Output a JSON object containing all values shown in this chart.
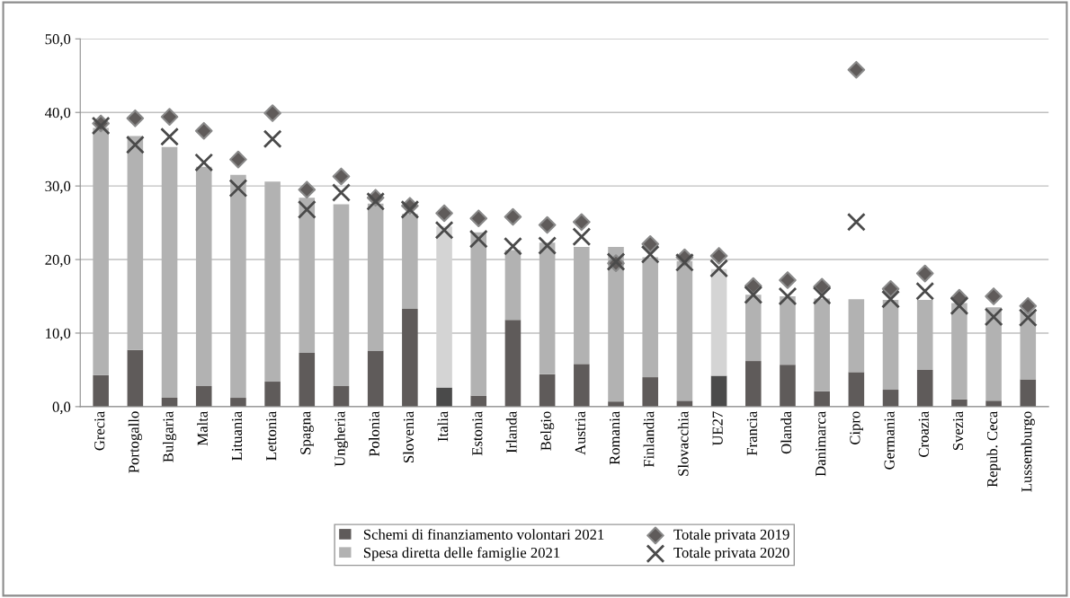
{
  "chart_data": {
    "type": "bar",
    "stacked": true,
    "grid": "y",
    "legend": "bottom",
    "categories": [
      "Grecia",
      "Portogallo",
      "Bulgaria",
      "Malta",
      "Lituania",
      "Lettonia",
      "Spagna",
      "Ungheria",
      "Polonia",
      "Slovenia",
      "Italia",
      "Estonia",
      "Irlanda",
      "Belgio",
      "Austria",
      "Romania",
      "Finlandia",
      "Slovacchia",
      "UE27",
      "Francia",
      "Olanda",
      "Danimarca",
      "Cipro",
      "Germania",
      "Croazia",
      "Svezia",
      "Repub. Ceca",
      "Lussemburgo"
    ],
    "ylim": [
      0,
      50
    ],
    "yticks": [
      {
        "value": 0,
        "label": "0,0"
      },
      {
        "value": 10,
        "label": "10,0"
      },
      {
        "value": 20,
        "label": "20,0"
      },
      {
        "value": 30,
        "label": "30,0"
      },
      {
        "value": 40,
        "label": "40,0"
      },
      {
        "value": 50,
        "label": "50,0"
      }
    ],
    "series": [
      {
        "name": "Schemi di finanziamento volontari 2021",
        "color": "#5f5b5a",
        "colors": [
          "#5f5b5a",
          "#5f5b5a",
          "#5f5b5a",
          "#5f5b5a",
          "#5f5b5a",
          "#5f5b5a",
          "#5f5b5a",
          "#5f5b5a",
          "#5f5b5a",
          "#5f5b5a",
          "#4a4a4a",
          "#5f5b5a",
          "#5f5b5a",
          "#5f5b5a",
          "#5f5b5a",
          "#5f5b5a",
          "#5f5b5a",
          "#5f5b5a",
          "#4a4a4a",
          "#5f5b5a",
          "#5f5b5a",
          "#5f5b5a",
          "#5f5b5a",
          "#5f5b5a",
          "#5f5b5a",
          "#5f5b5a",
          "#5f5b5a",
          "#5f5b5a"
        ],
        "values": [
          4.3,
          7.7,
          1.2,
          2.8,
          1.2,
          3.4,
          7.3,
          2.8,
          7.6,
          13.3,
          2.6,
          1.5,
          11.8,
          4.4,
          5.8,
          0.7,
          4.0,
          0.8,
          4.2,
          6.2,
          5.7,
          2.1,
          4.7,
          2.3,
          5.0,
          1.0,
          0.8,
          3.7
        ]
      },
      {
        "name": "Spesa diretta delle famiglie 2021",
        "color": "#b2b2b2",
        "colors": [
          "#b2b2b2",
          "#b2b2b2",
          "#b2b2b2",
          "#b2b2b2",
          "#b2b2b2",
          "#b2b2b2",
          "#b2b2b2",
          "#b2b2b2",
          "#b2b2b2",
          "#b2b2b2",
          "#d4d4d4",
          "#b2b2b2",
          "#b2b2b2",
          "#b2b2b2",
          "#b2b2b2",
          "#b2b2b2",
          "#b2b2b2",
          "#b2b2b2",
          "#d4d4d4",
          "#b2b2b2",
          "#b2b2b2",
          "#b2b2b2",
          "#b2b2b2",
          "#b2b2b2",
          "#b2b2b2",
          "#b2b2b2",
          "#b2b2b2",
          "#b2b2b2"
        ],
        "values": [
          33.6,
          29.1,
          34.1,
          29.8,
          30.3,
          27.2,
          21.1,
          24.7,
          20.0,
          12.9,
          21.9,
          22.2,
          9.5,
          17.9,
          15.9,
          21.0,
          16.3,
          19.0,
          14.5,
          9.0,
          9.3,
          12.6,
          9.9,
          12.2,
          9.5,
          13.1,
          12.7,
          9.2
        ]
      },
      {
        "name": "Totale privata 2019",
        "type": "scatter",
        "marker": "diamond",
        "color": "#5f5b5a",
        "values": [
          38.5,
          39.2,
          39.4,
          37.5,
          33.6,
          39.9,
          29.5,
          31.3,
          28.4,
          27.3,
          26.3,
          25.6,
          25.8,
          24.7,
          25.1,
          19.5,
          22.1,
          20.3,
          20.5,
          16.4,
          17.2,
          16.3,
          45.8,
          16.0,
          18.1,
          14.8,
          15.0,
          13.7
        ]
      },
      {
        "name": "Totale privata 2020",
        "type": "scatter",
        "marker": "cross",
        "color": "#4a4a4a",
        "values": [
          38.2,
          35.6,
          36.7,
          33.2,
          29.7,
          36.4,
          26.8,
          29.1,
          27.9,
          26.8,
          24.0,
          22.8,
          21.8,
          21.9,
          23.1,
          19.7,
          20.7,
          19.6,
          18.8,
          15.2,
          15.0,
          15.1,
          25.1,
          14.6,
          15.7,
          13.7,
          12.2,
          12.1
        ]
      }
    ]
  }
}
